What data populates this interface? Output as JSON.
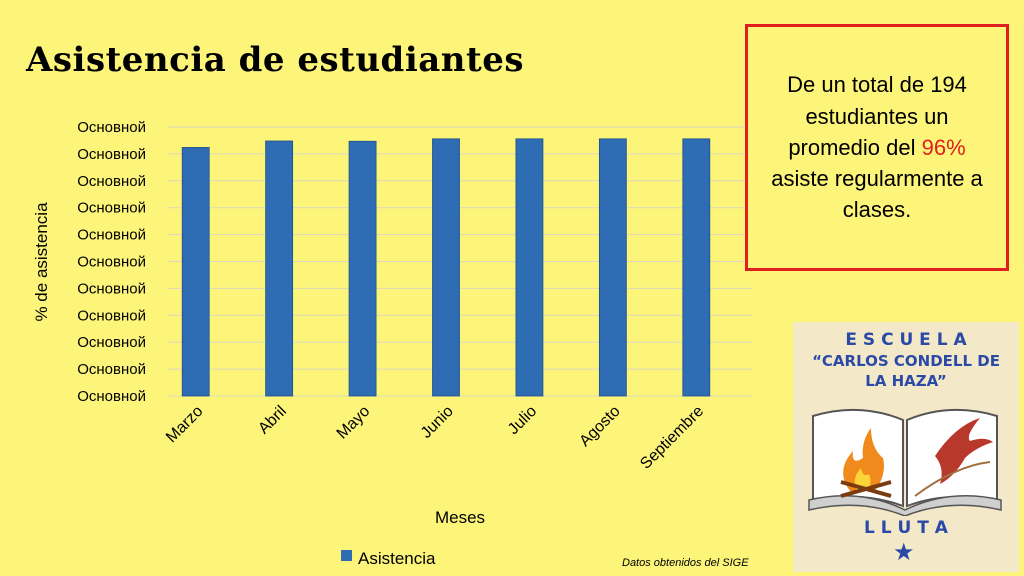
{
  "title": "Asistencia de estudiantes",
  "callout": {
    "line1": "De un total de 194 estudiantes un promedio del ",
    "percent": "96%",
    "line2": " asiste regularmente a clases."
  },
  "source": "Datos obtenidos del SIGE",
  "logo": {
    "line1": "E S C U E L A",
    "line2": "“CARLOS CONDELL DE",
    "line3": "LA HAZA”",
    "line4": "L L U T A"
  },
  "colors": {
    "background": "#fdf57a",
    "bar": "#2e6db4",
    "callout_border": "#e02020",
    "accent_text": "#e02020"
  },
  "chart_data": {
    "type": "bar",
    "categories": [
      "Marzo",
      "Abril",
      "Mayo",
      "Junio",
      "Julio",
      "Agosto",
      "Septiembre"
    ],
    "series": [
      {
        "name": "Asistencia",
        "values": [
          92.4,
          94.8,
          94.7,
          95.6,
          95.6,
          95.6,
          95.6
        ]
      }
    ],
    "y_tick_labels": [
      "Основной",
      "Основной",
      "Основной",
      "Основной",
      "Основной",
      "Основной",
      "Основной",
      "Основной",
      "Основной",
      "Основной",
      "Основной"
    ],
    "ylim": [
      0,
      100
    ],
    "xlabel": "Meses",
    "ylabel": "% de asistencia",
    "grid": true,
    "legend_position": "bottom"
  }
}
